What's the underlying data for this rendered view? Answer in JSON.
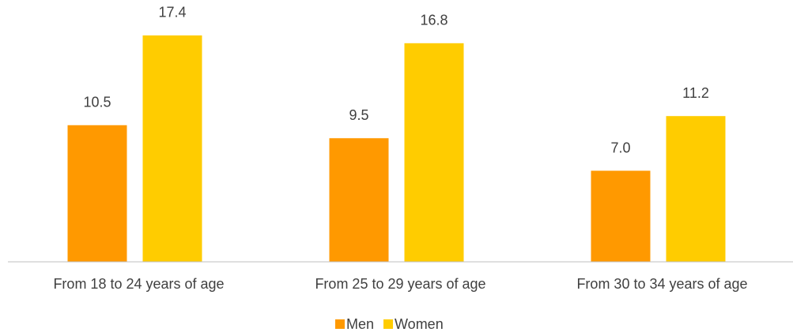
{
  "chart_data": {
    "type": "bar",
    "categories": [
      "From 18 to 24 years of age",
      "From 25 to 29 years of age",
      "From 30 to 34 years of age"
    ],
    "series": [
      {
        "name": "Men",
        "color": "#ff9900",
        "values": [
          10.5,
          9.5,
          7.0
        ],
        "value_labels": [
          "10.5",
          "9.5",
          "7.0"
        ]
      },
      {
        "name": "Women",
        "color": "#ffcc00",
        "values": [
          17.4,
          16.8,
          11.2
        ],
        "value_labels": [
          "17.4",
          "16.8",
          "11.2"
        ]
      }
    ],
    "ylim": [
      0,
      20
    ],
    "legend": "bottom"
  }
}
